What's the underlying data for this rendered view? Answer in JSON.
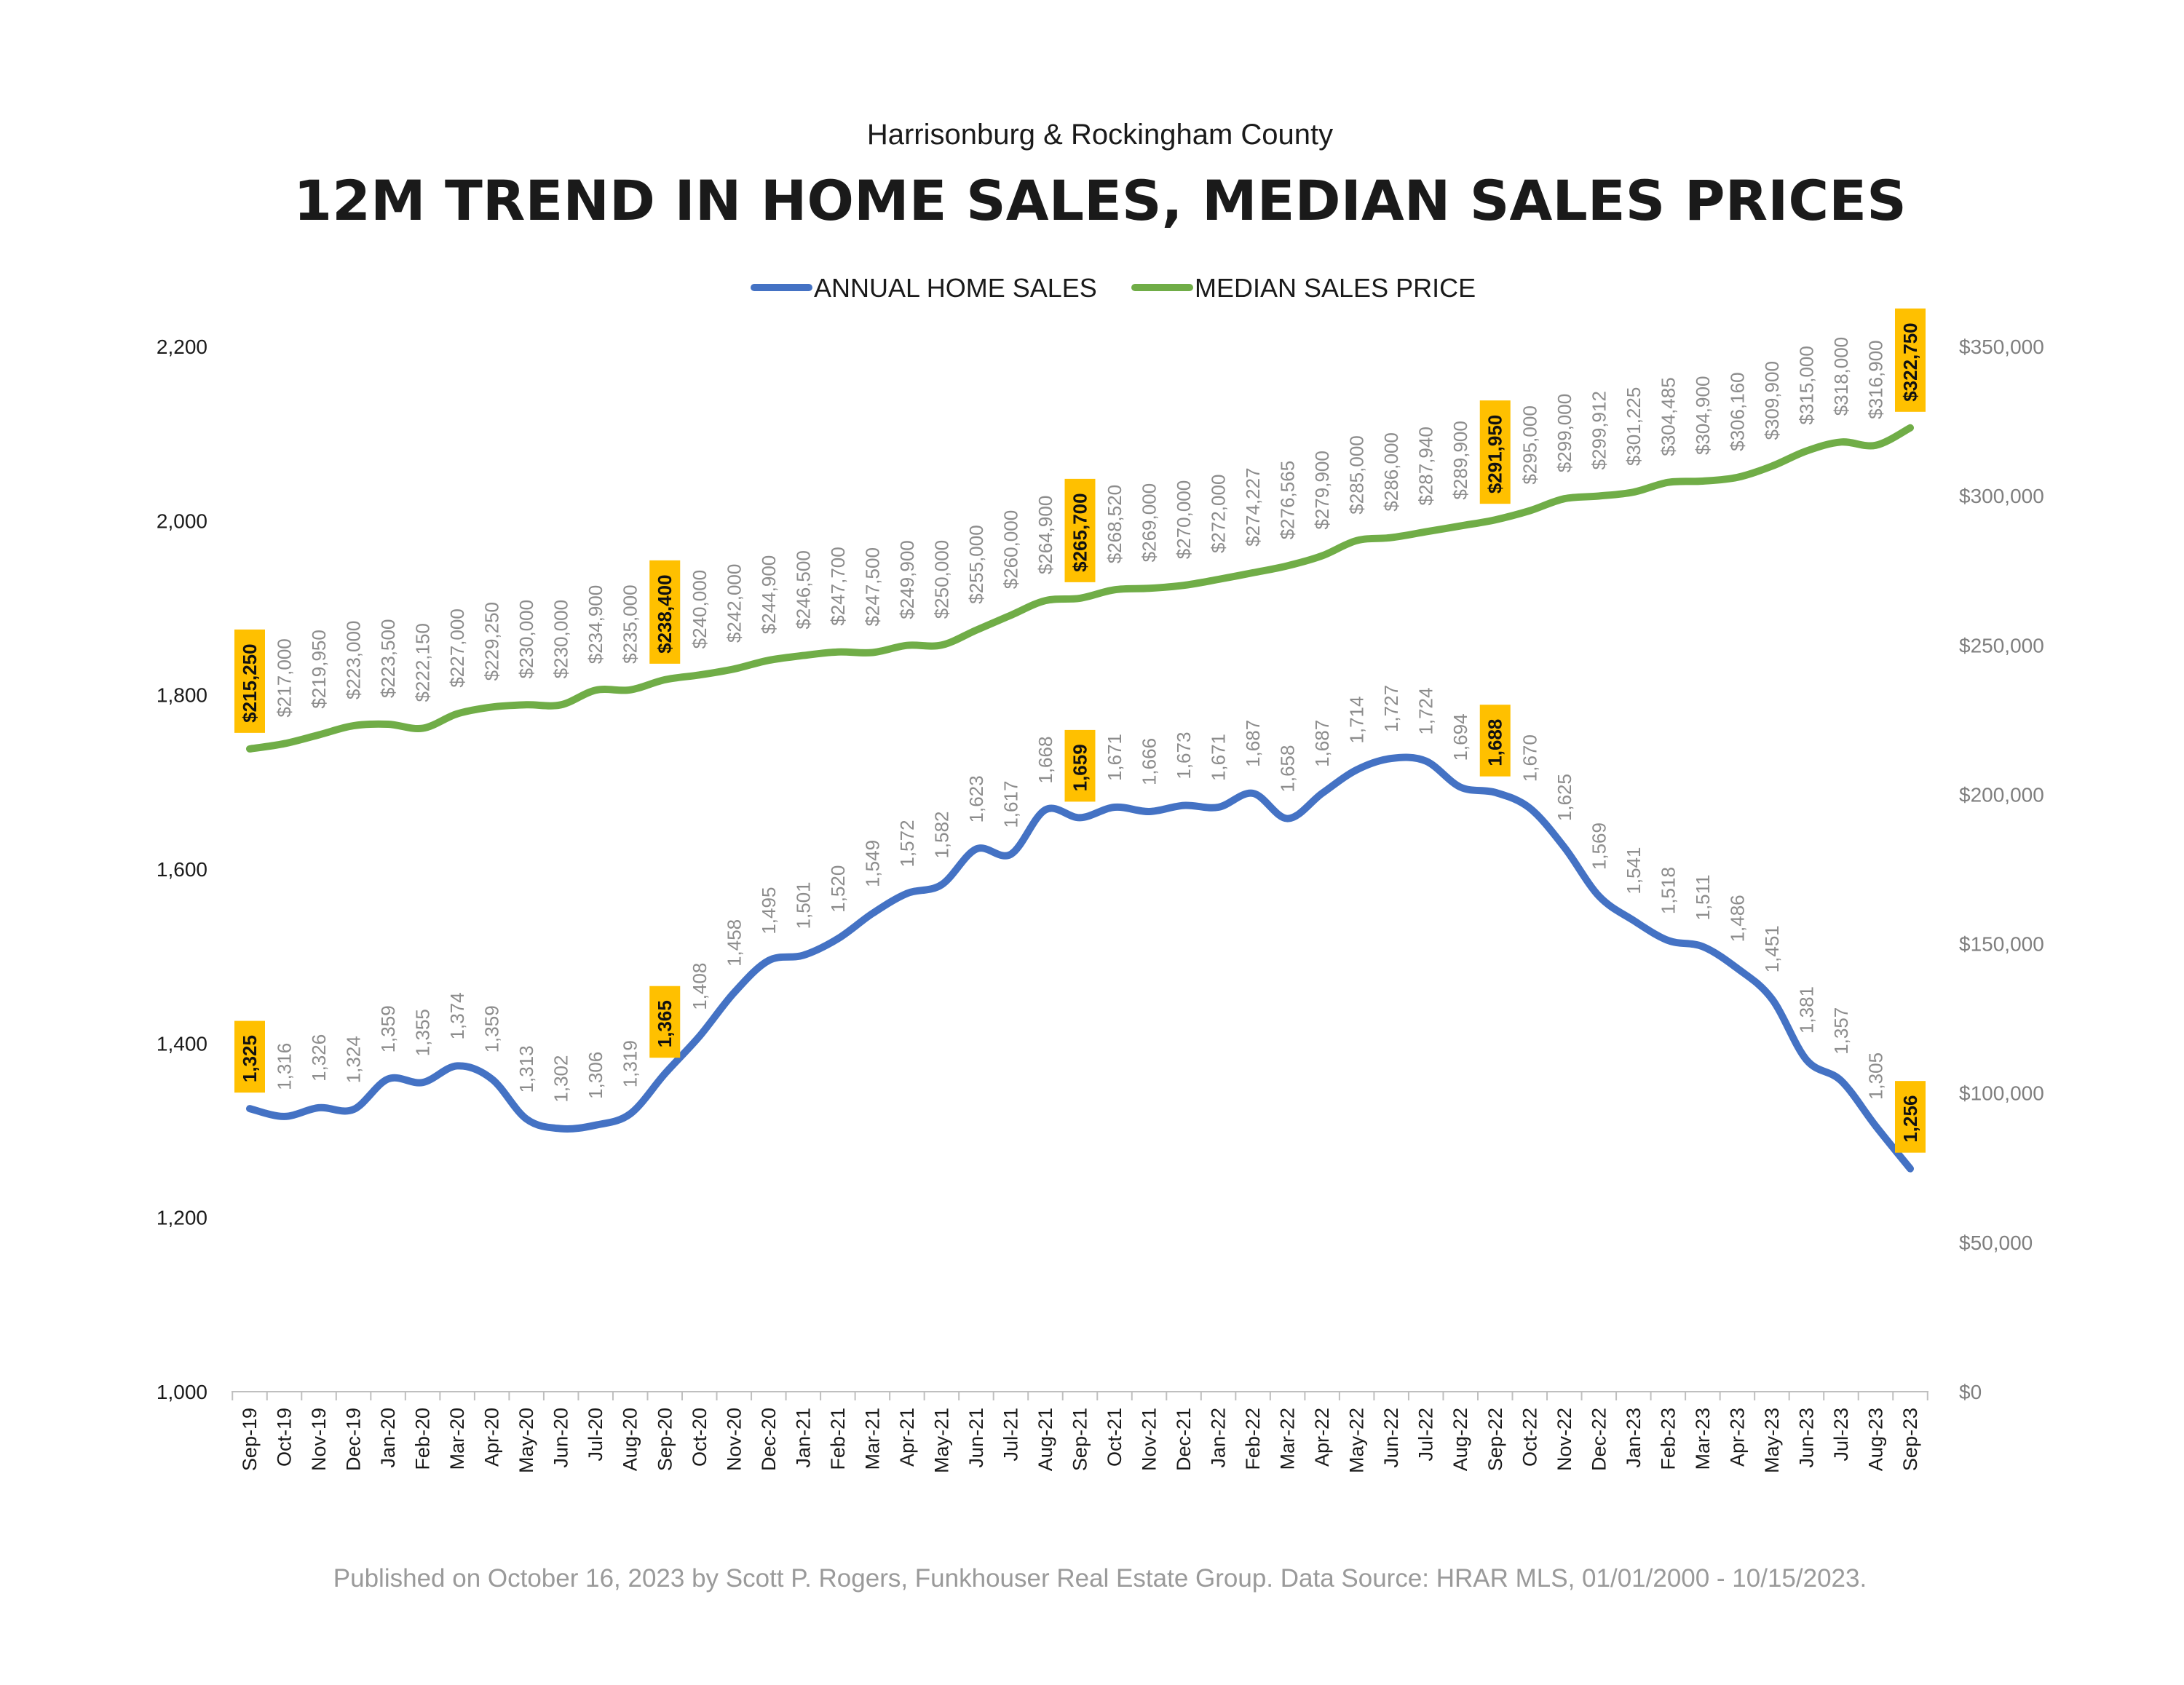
{
  "chart_data": {
    "type": "line",
    "subtitle": "Harrisonburg & Rockingham County",
    "title": "12M TREND IN HOME SALES, MEDIAN SALES PRICES",
    "footer": "Published on October 16, 2023 by Scott P. Rogers, Funkhouser Real Estate Group. Data Source: HRAR MLS, 01/01/2000 - 10/15/2023.",
    "legend_position": "top-center",
    "grid": false,
    "categories": [
      "Sep-19",
      "Oct-19",
      "Nov-19",
      "Dec-19",
      "Jan-20",
      "Feb-20",
      "Mar-20",
      "Apr-20",
      "May-20",
      "Jun-20",
      "Jul-20",
      "Aug-20",
      "Sep-20",
      "Oct-20",
      "Nov-20",
      "Dec-20",
      "Jan-21",
      "Feb-21",
      "Mar-21",
      "Apr-21",
      "May-21",
      "Jun-21",
      "Jul-21",
      "Aug-21",
      "Sep-21",
      "Oct-21",
      "Nov-21",
      "Dec-21",
      "Jan-22",
      "Feb-22",
      "Mar-22",
      "Apr-22",
      "May-22",
      "Jun-22",
      "Jul-22",
      "Aug-22",
      "Sep-22",
      "Oct-22",
      "Nov-22",
      "Dec-22",
      "Jan-23",
      "Feb-23",
      "Mar-23",
      "Apr-23",
      "May-23",
      "Jun-23",
      "Jul-23",
      "Aug-23",
      "Sep-23"
    ],
    "highlight_indices": [
      0,
      12,
      24,
      36,
      48
    ],
    "left_axis": {
      "ylim": [
        1000,
        2200
      ],
      "ticks": [
        "1,000",
        "1,200",
        "1,400",
        "1,600",
        "1,800",
        "2,000",
        "2,200"
      ],
      "tick_values": [
        1000,
        1200,
        1400,
        1600,
        1800,
        2000,
        2200
      ]
    },
    "right_axis": {
      "ylim": [
        0,
        350000
      ],
      "ticks": [
        "$0",
        "$50,000",
        "$100,000",
        "$150,000",
        "$200,000",
        "$250,000",
        "$300,000",
        "$350,000"
      ],
      "tick_values": [
        0,
        50000,
        100000,
        150000,
        200000,
        250000,
        300000,
        350000
      ]
    },
    "series": [
      {
        "name": "ANNUAL HOME SALES",
        "axis": "left",
        "color": "#4472C4",
        "values": [
          1325,
          1316,
          1326,
          1324,
          1359,
          1355,
          1374,
          1359,
          1313,
          1302,
          1306,
          1319,
          1365,
          1408,
          1458,
          1495,
          1501,
          1520,
          1549,
          1572,
          1582,
          1623,
          1617,
          1668,
          1659,
          1671,
          1666,
          1673,
          1671,
          1687,
          1658,
          1687,
          1714,
          1727,
          1724,
          1694,
          1688,
          1670,
          1625,
          1569,
          1541,
          1518,
          1511,
          1486,
          1451,
          1381,
          1357,
          1305,
          1256
        ],
        "labels": [
          "1,325",
          "1,316",
          "1,326",
          "1,324",
          "1,359",
          "1,355",
          "1,374",
          "1,359",
          "1,313",
          "1,302",
          "1,306",
          "1,319",
          "1,365",
          "1,408",
          "1,458",
          "1,495",
          "1,501",
          "1,520",
          "1,549",
          "1,572",
          "1,582",
          "1,623",
          "1,617",
          "1,668",
          "1,659",
          "1,671",
          "1,666",
          "1,673",
          "1,671",
          "1,687",
          "1,658",
          "1,687",
          "1,714",
          "1,727",
          "1,724",
          "1,694",
          "1,688",
          "1,670",
          "1,625",
          "1,569",
          "1,541",
          "1,518",
          "1,511",
          "1,486",
          "1,451",
          "1,381",
          "1,357",
          "1,305",
          "1,256"
        ]
      },
      {
        "name": "MEDIAN SALES PRICE",
        "axis": "right",
        "color": "#70AD47",
        "values": [
          215250,
          217000,
          219950,
          223000,
          223500,
          222150,
          227000,
          229250,
          230000,
          230000,
          234900,
          235000,
          238400,
          240000,
          242000,
          244900,
          246500,
          247700,
          247500,
          249900,
          250000,
          255000,
          260000,
          264900,
          265700,
          268520,
          269000,
          270000,
          272000,
          274227,
          276565,
          279900,
          285000,
          286000,
          287940,
          289900,
          291950,
          295000,
          299000,
          299912,
          301225,
          304485,
          304900,
          306160,
          309900,
          315000,
          318000,
          316900,
          322750
        ],
        "labels": [
          "$215,250",
          "$217,000",
          "$219,950",
          "$223,000",
          "$223,500",
          "$222,150",
          "$227,000",
          "$229,250",
          "$230,000",
          "$230,000",
          "$234,900",
          "$235,000",
          "$238,400",
          "$240,000",
          "$242,000",
          "$244,900",
          "$246,500",
          "$247,700",
          "$247,500",
          "$249,900",
          "$250,000",
          "$255,000",
          "$260,000",
          "$264,900",
          "$265,700",
          "$268,520",
          "$269,000",
          "$270,000",
          "$272,000",
          "$274,227",
          "$276,565",
          "$279,900",
          "$285,000",
          "$286,000",
          "$287,940",
          "$289,900",
          "$291,950",
          "$295,000",
          "$299,000",
          "$299,912",
          "$301,225",
          "$304,485",
          "$304,900",
          "$306,160",
          "$309,900",
          "$315,000",
          "$318,000",
          "$316,900",
          "$322,750"
        ]
      }
    ],
    "colors": {
      "highlight_box": "#FFC000",
      "label_text": "#8C8C8C"
    }
  }
}
